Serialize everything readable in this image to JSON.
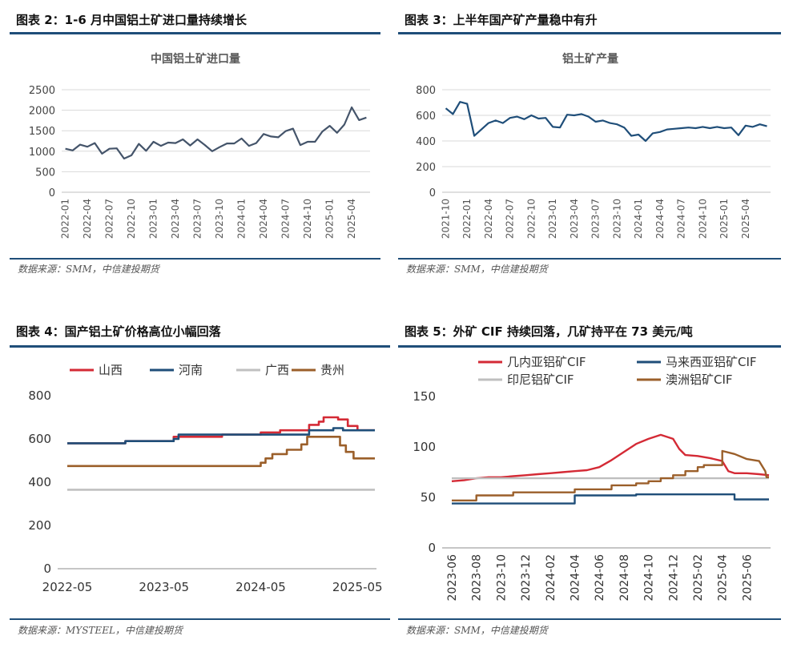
{
  "panels": [
    {
      "heading": "图表 2：1-6 月中国铝土矿进口量持续增长",
      "source": "数据来源：SMM，中信建投期货",
      "chart_data": {
        "type": "line",
        "title": "中国铝土矿进口量",
        "xlabel": "",
        "ylabel": "",
        "ylim": [
          0,
          2500
        ],
        "yticks": [
          "0",
          "500",
          "1000",
          "1500",
          "2000",
          "2500"
        ],
        "xticks": [
          "2022-01",
          "2022-04",
          "2022-07",
          "2022-10",
          "2023-01",
          "2023-04",
          "2023-07",
          "2023-10",
          "2024-01",
          "2024-04",
          "2024-07",
          "2024-10",
          "2025-01",
          "2025-04"
        ],
        "grid": true,
        "series": [
          {
            "color": "#44546a",
            "values": [
              1060,
              1020,
              1160,
              1110,
              1200,
              940,
              1060,
              1070,
              820,
              900,
              1180,
              1010,
              1230,
              1130,
              1210,
              1200,
              1290,
              1140,
              1290,
              1150,
              1000,
              1100,
              1190,
              1190,
              1310,
              1130,
              1200,
              1420,
              1360,
              1340,
              1490,
              1550,
              1150,
              1230,
              1230,
              1480,
              1620,
              1450,
              1650,
              2070,
              1760,
              1820
            ]
          }
        ]
      }
    },
    {
      "heading": "图表 3：上半年国产矿产量稳中有升",
      "source": "数据来源：SMM，中信建投期货",
      "chart_data": {
        "type": "line",
        "title": "铝土矿产量",
        "xlabel": "",
        "ylabel": "",
        "ylim": [
          0,
          800
        ],
        "yticks": [
          "0",
          "200",
          "400",
          "600",
          "800"
        ],
        "xticks": [
          "2021-10",
          "2022-01",
          "2022-04",
          "2022-07",
          "2022-10",
          "2023-01",
          "2023-04",
          "2023-07",
          "2023-10",
          "2024-01",
          "2024-04",
          "2024-07",
          "2024-10",
          "2025-01",
          "2025-04"
        ],
        "grid": true,
        "series": [
          {
            "color": "#1f4e79",
            "values": [
              655,
              610,
              705,
              690,
              440,
              490,
              540,
              560,
              540,
              580,
              590,
              570,
              600,
              575,
              580,
              510,
              505,
              605,
              600,
              610,
              590,
              550,
              560,
              540,
              530,
              505,
              440,
              450,
              400,
              460,
              470,
              490,
              495,
              500,
              505,
              500,
              510,
              500,
              510,
              500,
              505,
              445,
              520,
              510,
              530,
              515
            ]
          }
        ]
      }
    },
    {
      "heading": "图表 4：国产铝土矿价格高位小幅回落",
      "source": "数据来源：MYSTEEL，中信建投期货",
      "chart_data": {
        "type": "line",
        "title": "",
        "xlabel": "",
        "ylabel": "",
        "ylim": [
          0,
          800
        ],
        "yticks": [
          "0",
          "200",
          "400",
          "600",
          "800"
        ],
        "xticks": [
          "2022-05",
          "2023-05",
          "2024-05",
          "2025-05"
        ],
        "grid": false,
        "legend_position": "top",
        "series": [
          {
            "name": "山西",
            "color": "#d42a35",
            "points": [
              [
                0,
                580
              ],
              [
                0.6,
                580
              ],
              [
                0.6,
                590
              ],
              [
                1.1,
                590
              ],
              [
                1.1,
                610
              ],
              [
                1.6,
                610
              ],
              [
                1.6,
                620
              ],
              [
                2.0,
                620
              ],
              [
                2.0,
                630
              ],
              [
                2.2,
                630
              ],
              [
                2.2,
                640
              ],
              [
                2.5,
                640
              ],
              [
                2.5,
                665
              ],
              [
                2.6,
                665
              ],
              [
                2.6,
                680
              ],
              [
                2.65,
                680
              ],
              [
                2.65,
                700
              ],
              [
                2.8,
                700
              ],
              [
                2.8,
                690
              ],
              [
                2.9,
                690
              ],
              [
                2.9,
                660
              ],
              [
                3.0,
                660
              ],
              [
                3.0,
                640
              ],
              [
                3.18,
                640
              ]
            ]
          },
          {
            "name": "河南",
            "color": "#1f4e79",
            "points": [
              [
                0,
                580
              ],
              [
                0.6,
                580
              ],
              [
                0.6,
                590
              ],
              [
                1.1,
                590
              ],
              [
                1.1,
                600
              ],
              [
                1.15,
                600
              ],
              [
                1.15,
                620
              ],
              [
                2.5,
                620
              ],
              [
                2.5,
                640
              ],
              [
                2.75,
                640
              ],
              [
                2.75,
                650
              ],
              [
                2.85,
                650
              ],
              [
                2.85,
                640
              ],
              [
                3.18,
                640
              ]
            ]
          },
          {
            "name": "广西",
            "color": "#c0c0c0",
            "points": [
              [
                0,
                365
              ],
              [
                3.18,
                365
              ]
            ]
          },
          {
            "name": "贵州",
            "color": "#9b5f2a",
            "points": [
              [
                0,
                475
              ],
              [
                2.0,
                475
              ],
              [
                2.0,
                490
              ],
              [
                2.05,
                490
              ],
              [
                2.05,
                510
              ],
              [
                2.12,
                510
              ],
              [
                2.12,
                530
              ],
              [
                2.27,
                530
              ],
              [
                2.27,
                550
              ],
              [
                2.42,
                550
              ],
              [
                2.42,
                575
              ],
              [
                2.48,
                575
              ],
              [
                2.48,
                610
              ],
              [
                2.82,
                610
              ],
              [
                2.82,
                570
              ],
              [
                2.88,
                570
              ],
              [
                2.88,
                540
              ],
              [
                2.96,
                540
              ],
              [
                2.96,
                510
              ],
              [
                3.18,
                510
              ]
            ]
          }
        ]
      }
    },
    {
      "heading": "图表 5：外矿 CIF 持续回落，几矿持平在 73 美元/吨",
      "source": "数据来源：SMM，中信建投期货",
      "chart_data": {
        "type": "line",
        "title": "",
        "xlabel": "",
        "ylabel": "",
        "ylim": [
          0,
          150
        ],
        "yticks": [
          "0",
          "50",
          "100",
          "150"
        ],
        "xticks": [
          "2023-06",
          "2023-08",
          "2023-10",
          "2023-12",
          "2024-02",
          "2024-04",
          "2024-06",
          "2024-08",
          "2024-10",
          "2024-12",
          "2025-02",
          "2025-04",
          "2025-06"
        ],
        "grid": false,
        "legend_position": "top",
        "series": [
          {
            "name": "几内亚铝矿CIF",
            "color": "#d42a35",
            "points": [
              [
                0,
                66
              ],
              [
                1,
                67
              ],
              [
                2,
                69
              ],
              [
                3,
                70
              ],
              [
                4,
                70
              ],
              [
                5,
                71
              ],
              [
                6,
                72
              ],
              [
                7,
                73
              ],
              [
                8,
                74
              ],
              [
                9,
                75
              ],
              [
                10,
                76
              ],
              [
                11,
                77
              ],
              [
                12,
                80
              ],
              [
                13,
                87
              ],
              [
                14,
                95
              ],
              [
                15,
                103
              ],
              [
                16,
                108
              ],
              [
                17,
                112
              ],
              [
                18,
                108
              ],
              [
                18.5,
                98
              ],
              [
                19,
                92
              ],
              [
                20,
                91
              ],
              [
                21,
                89
              ],
              [
                22,
                86
              ],
              [
                22.5,
                76
              ],
              [
                23,
                74
              ],
              [
                24,
                74
              ],
              [
                25,
                73
              ],
              [
                25.8,
                72
              ]
            ]
          },
          {
            "name": "马来西亚铝矿CIF",
            "color": "#1f4e79",
            "points": [
              [
                0,
                44
              ],
              [
                10,
                44
              ],
              [
                10,
                52
              ],
              [
                15,
                52
              ],
              [
                15,
                53
              ],
              [
                23,
                53
              ],
              [
                23,
                48
              ],
              [
                25.8,
                48
              ]
            ]
          },
          {
            "name": "印尼铝矿CIF",
            "color": "#bfbfbf",
            "points": [
              [
                0,
                69
              ],
              [
                25.8,
                69
              ]
            ]
          },
          {
            "name": "澳洲铝矿CIF",
            "color": "#9b5f2a",
            "points": [
              [
                0,
                47
              ],
              [
                2,
                47
              ],
              [
                2,
                52
              ],
              [
                5,
                52
              ],
              [
                5,
                55
              ],
              [
                10,
                55
              ],
              [
                10,
                58
              ],
              [
                13,
                58
              ],
              [
                13,
                62
              ],
              [
                15,
                62
              ],
              [
                15,
                64
              ],
              [
                16,
                64
              ],
              [
                16,
                66
              ],
              [
                17,
                66
              ],
              [
                17,
                69
              ],
              [
                18,
                69
              ],
              [
                18,
                72
              ],
              [
                19,
                72
              ],
              [
                19,
                76
              ],
              [
                20,
                76
              ],
              [
                20,
                80
              ],
              [
                20.5,
                80
              ],
              [
                20.5,
                82
              ],
              [
                22,
                82
              ],
              [
                22,
                96
              ],
              [
                23,
                93
              ],
              [
                24,
                88
              ],
              [
                25,
                86
              ],
              [
                25.5,
                76
              ],
              [
                25.6,
                70
              ],
              [
                25.8,
                70
              ]
            ]
          }
        ]
      }
    }
  ]
}
